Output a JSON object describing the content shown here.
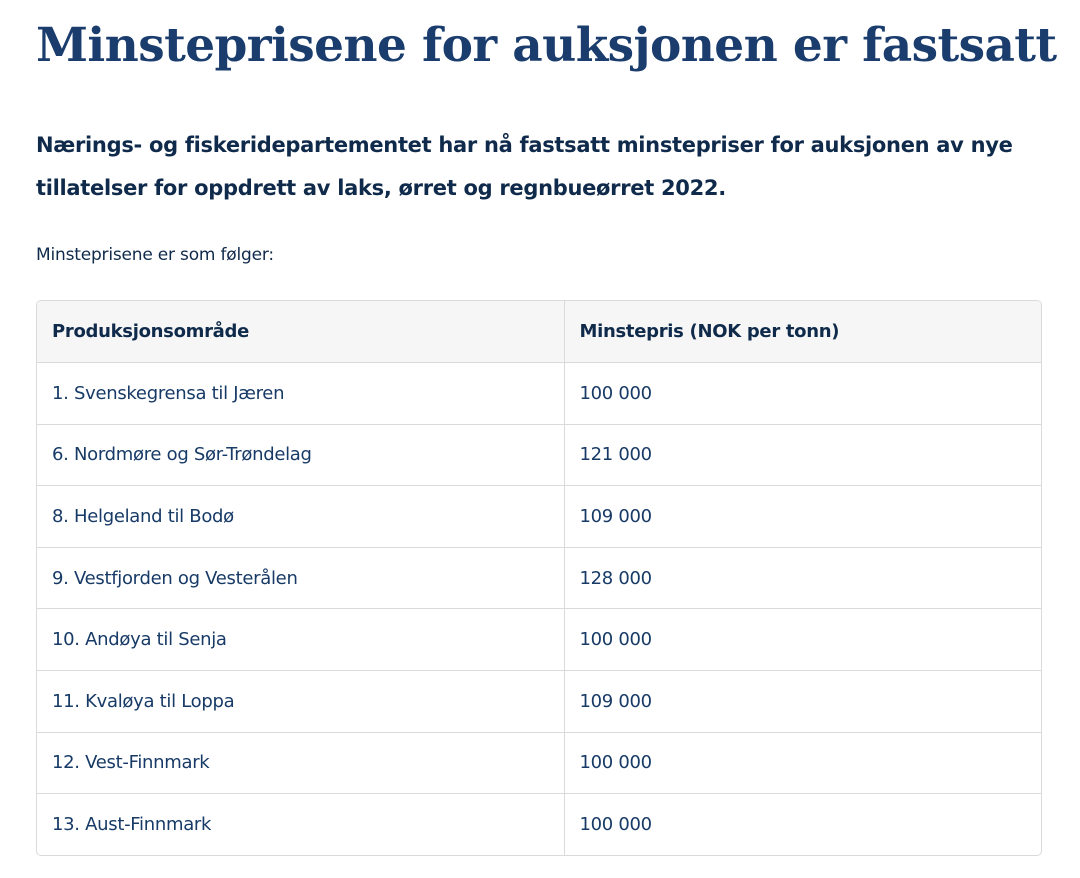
{
  "article": {
    "title": "Minsteprisene for auksjonen er fastsatt",
    "lead": "Nærings- og fiskeridepartementet har nå fastsatt minstepriser for auksjonen av nye tillatelser for oppdrett av laks, ørret og regnbueørret 2022.",
    "intro": "Minsteprisene er som følger:"
  },
  "table": {
    "headers": [
      "Produksjonsområde",
      "Minstepris (NOK per tonn)"
    ],
    "rows": [
      [
        "1. Svenskegrensa til Jæren",
        "100 000"
      ],
      [
        "6. Nordmøre og Sør-Trøndelag",
        "121 000"
      ],
      [
        "8. Helgeland til Bodø",
        "109 000"
      ],
      [
        "9. Vestfjorden og Vesterålen",
        "128 000"
      ],
      [
        "10. Andøya til Senja",
        "100 000"
      ],
      [
        "11. Kvaløya til Loppa",
        "109 000"
      ],
      [
        "12. Vest-Finnmark",
        "100 000"
      ],
      [
        "13. Aust-Finnmark",
        "100 000"
      ]
    ]
  },
  "colors": {
    "title": "#1a3d6d",
    "text": "#0f2a4a",
    "header_bg": "#f6f6f6",
    "border": "#dadada"
  }
}
